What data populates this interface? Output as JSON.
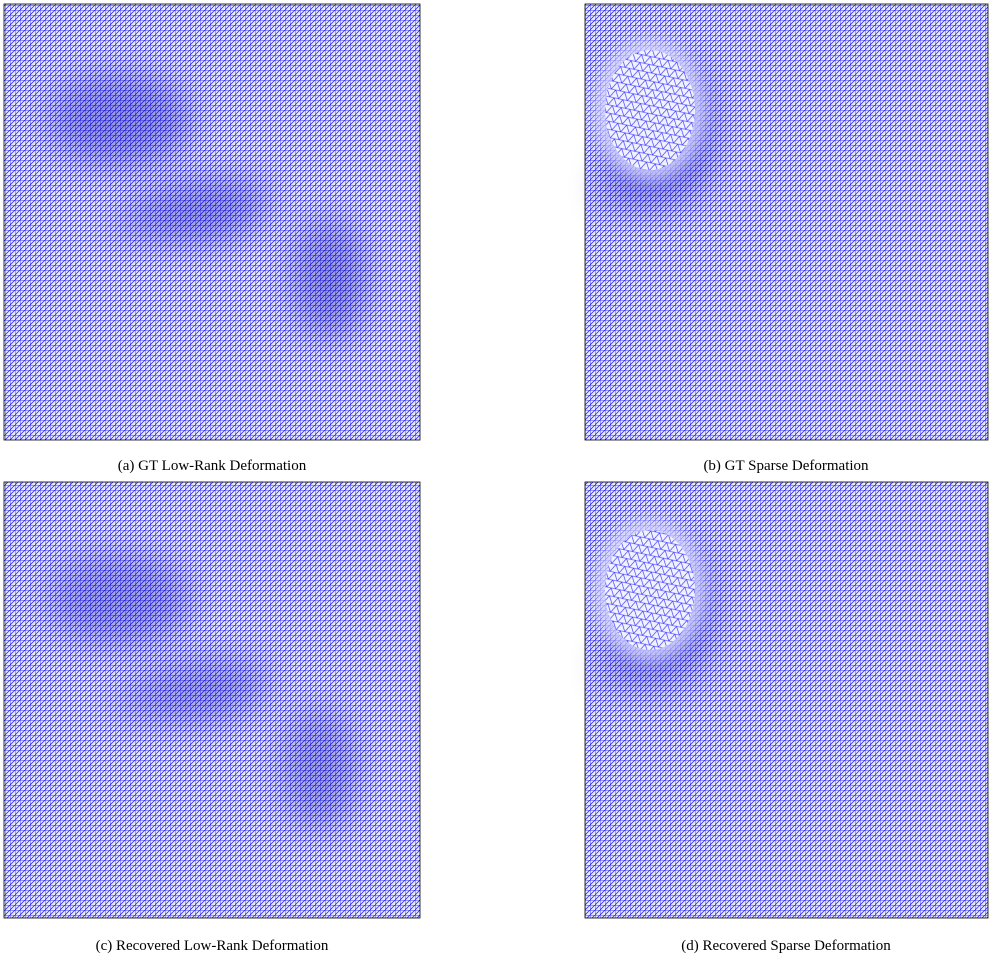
{
  "figure": {
    "panels": [
      {
        "caption": "(a) GT Low-Rank Deformation"
      },
      {
        "caption": "(b) GT Sparse Deformation"
      },
      {
        "caption": "(c) Recovered Low-Rank Deformation"
      },
      {
        "caption": "(d) Recovered Sparse Deformation"
      }
    ]
  }
}
